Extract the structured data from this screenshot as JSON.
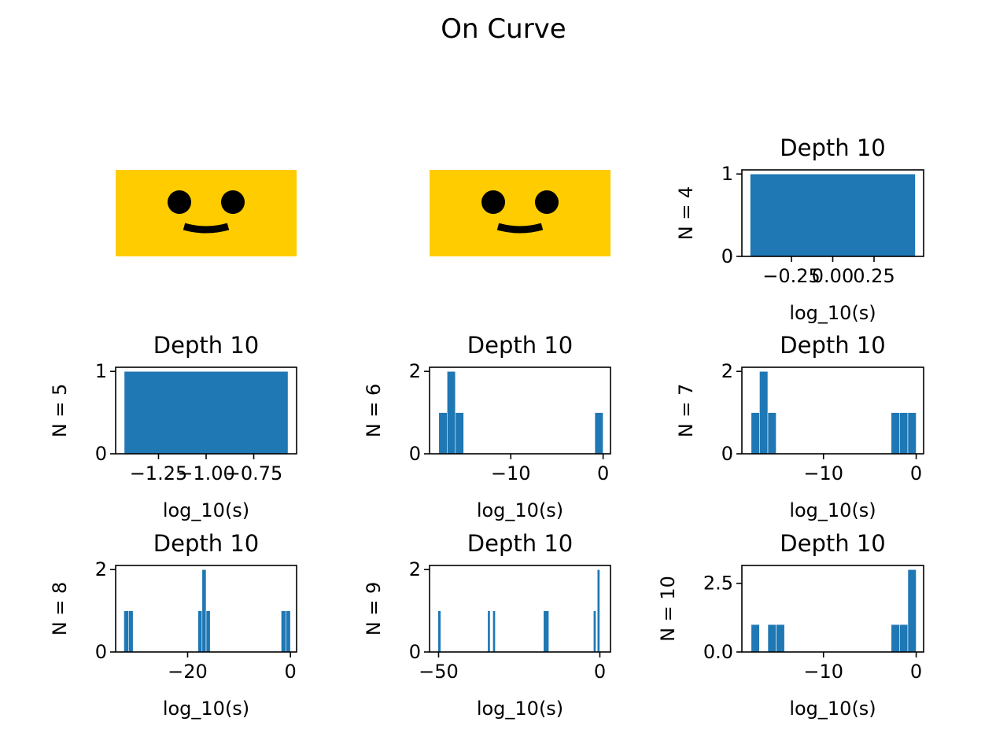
{
  "figure": {
    "suptitle": "On Curve"
  },
  "colors": {
    "bar": "#1f77b4",
    "face": "#ffcc00",
    "feature": "#000000"
  },
  "placeholder_icons": [
    "smiley-face-icon",
    "smiley-face-icon"
  ],
  "chart_data": [
    {
      "type": "bar",
      "title": "Depth 10",
      "ylabel": "N = 4",
      "xlabel": "log_10(s)",
      "xlim": [
        -0.55,
        0.55
      ],
      "ylim": [
        0,
        1.05
      ],
      "xticks": [
        -0.25,
        0.0,
        0.25
      ],
      "xtick_labels": [
        "−0.25",
        "0.00",
        "0.25"
      ],
      "yticks": [
        0,
        1
      ],
      "ytick_labels": [
        "0",
        "1"
      ],
      "bars": [
        {
          "x0": -0.5,
          "x1": 0.5,
          "h": 1
        }
      ]
    },
    {
      "type": "bar",
      "title": "Depth 10",
      "ylabel": "N = 5",
      "xlabel": "log_10(s)",
      "xlim": [
        -1.475,
        -0.525
      ],
      "ylim": [
        0,
        1.05
      ],
      "xticks": [
        -1.25,
        -1.0,
        -0.75
      ],
      "xtick_labels": [
        "−1.25",
        "−1.00",
        "−0.75"
      ],
      "yticks": [
        0,
        1
      ],
      "ytick_labels": [
        "0",
        "1"
      ],
      "bars": [
        {
          "x0": -1.43,
          "x1": -0.57,
          "h": 1
        }
      ]
    },
    {
      "type": "bar",
      "title": "Depth 10",
      "ylabel": "N = 6",
      "xlabel": "log_10(s)",
      "xlim": [
        -18.8,
        0.8
      ],
      "ylim": [
        0,
        2.1
      ],
      "xticks": [
        -10,
        0
      ],
      "xtick_labels": [
        "−10",
        "0"
      ],
      "yticks": [
        0,
        2
      ],
      "ytick_labels": [
        "0",
        "2"
      ],
      "bars": [
        {
          "x0": -17.8,
          "x1": -16.9,
          "h": 1
        },
        {
          "x0": -16.9,
          "x1": -16.0,
          "h": 2
        },
        {
          "x0": -16.0,
          "x1": -15.1,
          "h": 1
        },
        {
          "x0": -0.9,
          "x1": 0.0,
          "h": 1
        }
      ]
    },
    {
      "type": "bar",
      "title": "Depth 10",
      "ylabel": "N = 7",
      "xlabel": "log_10(s)",
      "xlim": [
        -18.8,
        0.8
      ],
      "ylim": [
        0,
        2.1
      ],
      "xticks": [
        -10,
        0
      ],
      "xtick_labels": [
        "−10",
        "0"
      ],
      "yticks": [
        0,
        2
      ],
      "ytick_labels": [
        "0",
        "2"
      ],
      "bars": [
        {
          "x0": -17.8,
          "x1": -16.9,
          "h": 1
        },
        {
          "x0": -16.9,
          "x1": -16.0,
          "h": 2
        },
        {
          "x0": -16.0,
          "x1": -15.1,
          "h": 1
        },
        {
          "x0": -2.7,
          "x1": -1.8,
          "h": 1
        },
        {
          "x0": -1.8,
          "x1": -0.9,
          "h": 1
        },
        {
          "x0": -0.9,
          "x1": 0.0,
          "h": 1
        }
      ]
    },
    {
      "type": "bar",
      "title": "Depth 10",
      "ylabel": "N = 8",
      "xlabel": "log_10(s)",
      "xlim": [
        -34.0,
        1.2
      ],
      "ylim": [
        0,
        2.1
      ],
      "xticks": [
        -20,
        0
      ],
      "xtick_labels": [
        "−20",
        "0"
      ],
      "yticks": [
        0,
        2
      ],
      "ytick_labels": [
        "0",
        "2"
      ],
      "bars": [
        {
          "x0": -32.4,
          "x1": -31.5,
          "h": 1
        },
        {
          "x0": -31.5,
          "x1": -30.6,
          "h": 1
        },
        {
          "x0": -18.0,
          "x1": -17.2,
          "h": 1
        },
        {
          "x0": -17.2,
          "x1": -16.4,
          "h": 2
        },
        {
          "x0": -16.4,
          "x1": -15.6,
          "h": 1
        },
        {
          "x0": -1.8,
          "x1": -0.9,
          "h": 1
        },
        {
          "x0": -0.9,
          "x1": 0.0,
          "h": 1
        }
      ]
    },
    {
      "type": "bar",
      "title": "Depth 10",
      "ylabel": "N = 9",
      "xlabel": "log_10(s)",
      "xlim": [
        -52.8,
        3.3
      ],
      "ylim": [
        0,
        2.1
      ],
      "xticks": [
        -50,
        0
      ],
      "xtick_labels": [
        "−50",
        "0"
      ],
      "yticks": [
        0,
        2
      ],
      "ytick_labels": [
        "0",
        "2"
      ],
      "bars": [
        {
          "x0": -50.2,
          "x1": -49.3,
          "h": 1
        },
        {
          "x0": -34.8,
          "x1": -34.0,
          "h": 1
        },
        {
          "x0": -33.2,
          "x1": -32.4,
          "h": 1
        },
        {
          "x0": -17.5,
          "x1": -15.8,
          "h": 1
        },
        {
          "x0": -2.0,
          "x1": -1.2,
          "h": 1
        },
        {
          "x0": -0.8,
          "x1": 0.0,
          "h": 2
        }
      ]
    },
    {
      "type": "bar",
      "title": "Depth 10",
      "ylabel": "N = 10",
      "xlabel": "log_10(s)",
      "xlim": [
        -18.8,
        0.8
      ],
      "ylim": [
        0,
        3.15
      ],
      "xticks": [
        -10,
        0
      ],
      "xtick_labels": [
        "−10",
        "0"
      ],
      "yticks": [
        0,
        2.5
      ],
      "ytick_labels": [
        "0.0",
        "2.5"
      ],
      "bars": [
        {
          "x0": -17.8,
          "x1": -16.9,
          "h": 1
        },
        {
          "x0": -16.0,
          "x1": -15.1,
          "h": 1
        },
        {
          "x0": -15.1,
          "x1": -14.2,
          "h": 1
        },
        {
          "x0": -2.7,
          "x1": -1.8,
          "h": 1
        },
        {
          "x0": -1.8,
          "x1": -0.9,
          "h": 1
        },
        {
          "x0": -0.9,
          "x1": 0.0,
          "h": 3
        }
      ]
    }
  ]
}
